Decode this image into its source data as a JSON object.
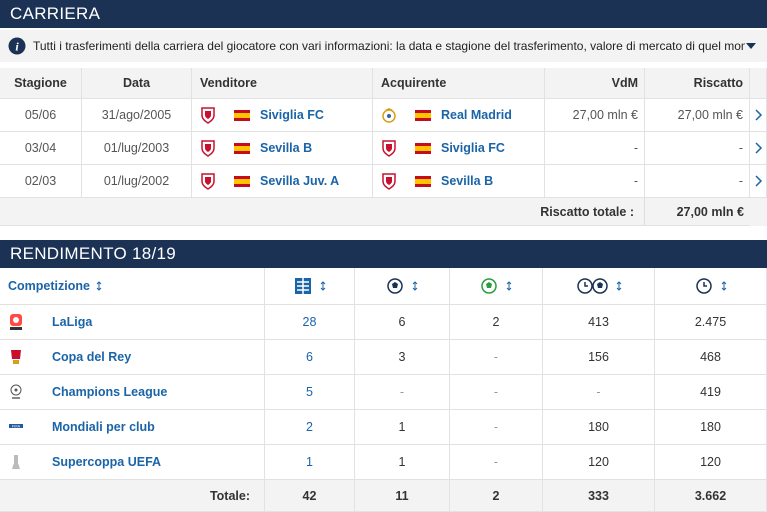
{
  "career": {
    "title": "CARRIERA",
    "info": "Tutti i trasferimenti della carriera del giocatore con vari informazioni: la data e stagione del trasferimento, valore di mercato di quel momento...",
    "headers": [
      "Stagione",
      "Data",
      "Venditore",
      "Acquirente",
      "VdM",
      "Riscatto"
    ],
    "rows": [
      [
        "05/06",
        "31/ago/2005",
        "Siviglia FC",
        "Real Madrid",
        "27,00 mln €",
        "27,00 mln €"
      ],
      [
        "03/04",
        "01/lug/2003",
        "Sevilla B",
        "Siviglia FC",
        "-",
        "-"
      ],
      [
        "02/03",
        "01/lug/2002",
        "Sevilla Juv. A",
        "Sevilla B",
        "-",
        "-"
      ]
    ],
    "total_label": "Riscatto totale :",
    "total_value": "27,00 mln €"
  },
  "performance": {
    "title": "RENDIMENTO 18/19",
    "header": "Competizione",
    "rows": [
      [
        "LaLiga",
        "28",
        "6",
        "2",
        "413",
        "2.475"
      ],
      [
        "Copa del Rey",
        "6",
        "3",
        "-",
        "156",
        "468"
      ],
      [
        "Champions League",
        "5",
        "-",
        "-",
        "-",
        "419"
      ],
      [
        "Mondiali per club",
        "2",
        "1",
        "-",
        "180",
        "180"
      ],
      [
        "Supercoppa UEFA",
        "1",
        "1",
        "-",
        "120",
        "120"
      ]
    ],
    "total_label": "Totale:",
    "totals": [
      "42",
      "11",
      "2",
      "333",
      "3.662"
    ]
  }
}
